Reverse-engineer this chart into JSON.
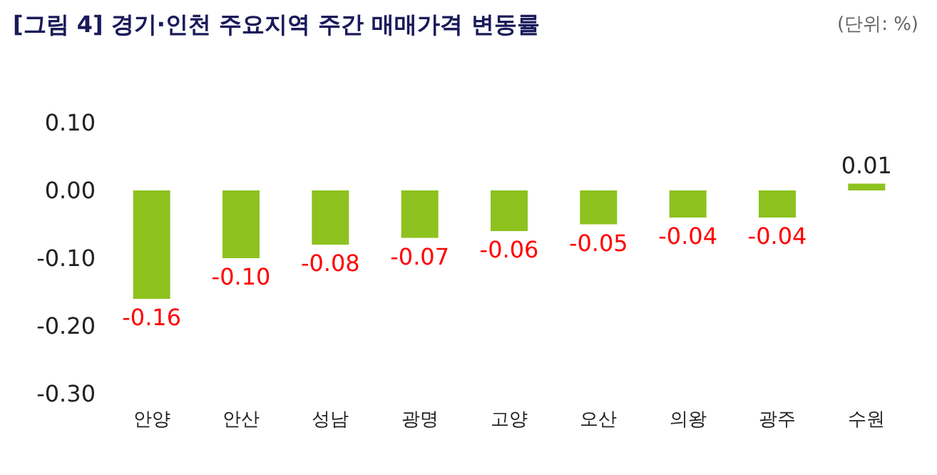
{
  "chart_data": {
    "type": "bar",
    "title": "[그림 4] 경기·인천 주요지역 주간 매매가격 변동률",
    "annotations": [
      "(단위: %)"
    ],
    "categories": [
      "안양",
      "안산",
      "성남",
      "광명",
      "고양",
      "오산",
      "의왕",
      "광주",
      "수원"
    ],
    "values": [
      -0.16,
      -0.1,
      -0.08,
      -0.07,
      -0.06,
      -0.05,
      -0.04,
      -0.04,
      0.01
    ],
    "value_labels": [
      "-0.16",
      "-0.10",
      "-0.08",
      "-0.07",
      "-0.06",
      "-0.05",
      "-0.04",
      "-0.04",
      "0.01"
    ],
    "color": "#8dc21f",
    "ylim": [
      -0.3,
      0.1
    ],
    "yticks": [
      {
        "value": -0.3,
        "label": "-0.30"
      },
      {
        "value": -0.2,
        "label": "-0.20"
      },
      {
        "value": -0.1,
        "label": "-0.10"
      },
      {
        "value": 0,
        "label": "0.00"
      },
      {
        "value": 0.1,
        "label": "0.10"
      }
    ],
    "grid": false
  }
}
